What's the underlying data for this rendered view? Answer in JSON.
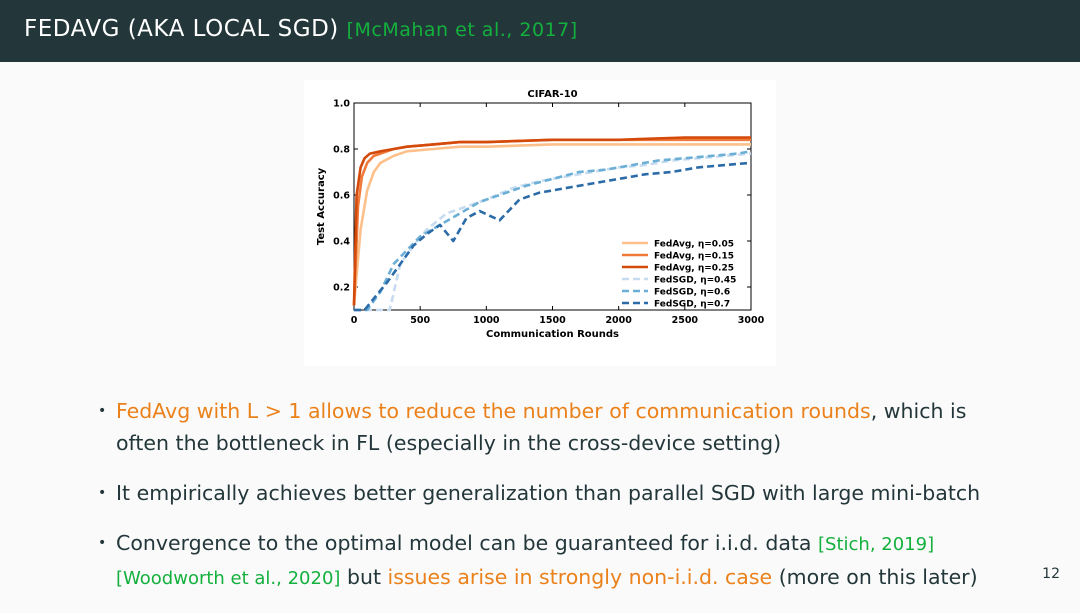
{
  "header": {
    "title": "FEDAVG (AKA LOCAL SGD)",
    "citation": "[McMahan et al., 2017]"
  },
  "chart_data": {
    "type": "line",
    "title": "CIFAR-10",
    "xlabel": "Communication Rounds",
    "ylabel": "Test Accuracy",
    "xlim": [
      0,
      3000
    ],
    "ylim": [
      0.1,
      1.0
    ],
    "xticks": [
      0,
      500,
      1000,
      1500,
      2000,
      2500,
      3000
    ],
    "yticks": [
      0.2,
      0.4,
      0.6,
      0.8,
      1.0
    ],
    "grid": false,
    "legend_position": "lower-right",
    "series": [
      {
        "name": "FedAvg, η=0.05",
        "color": "#fdc08a",
        "dash": "solid",
        "x": [
          0,
          50,
          100,
          150,
          200,
          300,
          400,
          600,
          800,
          1000,
          1500,
          2000,
          2500,
          3000
        ],
        "y": [
          0.12,
          0.45,
          0.62,
          0.7,
          0.74,
          0.77,
          0.79,
          0.8,
          0.81,
          0.81,
          0.82,
          0.82,
          0.82,
          0.82
        ]
      },
      {
        "name": "FedAvg, η=0.15",
        "color": "#f07a3a",
        "dash": "solid",
        "x": [
          0,
          30,
          60,
          100,
          150,
          200,
          300,
          400,
          600,
          800,
          1000,
          1500,
          2000,
          2500,
          3000
        ],
        "y": [
          0.12,
          0.55,
          0.68,
          0.74,
          0.77,
          0.78,
          0.8,
          0.81,
          0.82,
          0.83,
          0.83,
          0.84,
          0.84,
          0.84,
          0.84
        ]
      },
      {
        "name": "FedAvg, η=0.25",
        "color": "#d44a0a",
        "dash": "solid",
        "x": [
          0,
          20,
          50,
          80,
          120,
          200,
          300,
          400,
          600,
          800,
          1000,
          1500,
          2000,
          2500,
          3000
        ],
        "y": [
          0.12,
          0.6,
          0.72,
          0.76,
          0.78,
          0.79,
          0.8,
          0.81,
          0.82,
          0.83,
          0.83,
          0.84,
          0.84,
          0.85,
          0.85
        ]
      },
      {
        "name": "FedSGD, η=0.45",
        "color": "#c6dbef",
        "dash": "dashed",
        "x": [
          0,
          200,
          270,
          350,
          450,
          550,
          700,
          850,
          1000,
          1200,
          1400,
          1600,
          1800,
          2000,
          2200,
          2400,
          2600,
          2800,
          3000
        ],
        "y": [
          0.1,
          0.1,
          0.1,
          0.3,
          0.38,
          0.45,
          0.52,
          0.55,
          0.58,
          0.63,
          0.66,
          0.68,
          0.7,
          0.72,
          0.73,
          0.75,
          0.76,
          0.77,
          0.78
        ]
      },
      {
        "name": "FedSGD, η=0.6",
        "color": "#6baed6",
        "dash": "dashed",
        "x": [
          0,
          100,
          200,
          300,
          400,
          500,
          650,
          800,
          950,
          1100,
          1300,
          1500,
          1700,
          1900,
          2100,
          2300,
          2500,
          2700,
          2900,
          3000
        ],
        "y": [
          0.1,
          0.1,
          0.18,
          0.3,
          0.36,
          0.42,
          0.47,
          0.52,
          0.57,
          0.6,
          0.64,
          0.67,
          0.7,
          0.71,
          0.73,
          0.75,
          0.76,
          0.77,
          0.78,
          0.79
        ]
      },
      {
        "name": "FedSGD, η=0.7",
        "color": "#2b6ba8",
        "dash": "dashed",
        "x": [
          0,
          80,
          150,
          250,
          350,
          450,
          550,
          650,
          750,
          850,
          950,
          1100,
          1250,
          1400,
          1600,
          1800,
          2000,
          2200,
          2400,
          2600,
          2800,
          3000
        ],
        "y": [
          0.1,
          0.1,
          0.15,
          0.22,
          0.3,
          0.38,
          0.43,
          0.47,
          0.4,
          0.5,
          0.53,
          0.49,
          0.58,
          0.61,
          0.63,
          0.65,
          0.67,
          0.69,
          0.7,
          0.72,
          0.73,
          0.74
        ]
      }
    ]
  },
  "bullets": [
    {
      "highlight": "FedAvg with L > 1 allows to reduce the number of communication rounds",
      "rest1": ", which is",
      "line2": "often the bottleneck in FL (especially in the cross-device setting)"
    },
    {
      "text": "It empirically achieves better generalization than parallel SGD with large mini-batch"
    },
    {
      "text1": "Convergence to the optimal model can be guaranteed for i.i.d. data ",
      "cite1": "[Stich, 2019]",
      "cite2": "[Woodworth et al., 2020]",
      "text2": " but ",
      "highlight": "issues arise in strongly non-i.i.d. case",
      "text3": " (more on this later)"
    }
  ],
  "page_number": "12"
}
